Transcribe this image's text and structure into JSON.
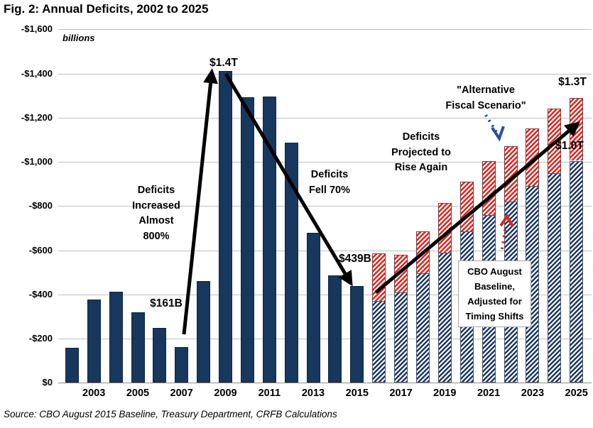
{
  "title": "Fig. 2: Annual Deficits, 2002 to 2025",
  "units_label": "billions",
  "source_line": "Source: CBO August 2015 Baseline, Treasury Department, CRFB Calculations",
  "colors": {
    "solid_bar": "#17375d",
    "baseline_hatch": "#1f3864",
    "afs_hatch": "#e0261f",
    "gridline": "#bfbfbf",
    "arrow_black": "#000000",
    "arrow_blue_dotted": "#2b4ea1",
    "arrow_red_dotted": "#d9261c"
  },
  "y_axis": {
    "ticks": [
      {
        "label": "-$1,600",
        "value": 1600
      },
      {
        "label": "-$1,400",
        "value": 1400
      },
      {
        "label": "-$1,200",
        "value": 1200
      },
      {
        "label": "-$1,000",
        "value": 1000
      },
      {
        "label": "-$800",
        "value": 800
      },
      {
        "label": "-$600",
        "value": 600
      },
      {
        "label": "-$400",
        "value": 400
      },
      {
        "label": "-$200",
        "value": 200
      },
      {
        "label": "$0",
        "value": 0
      }
    ]
  },
  "x_axis": {
    "tick_years": [
      2003,
      2005,
      2007,
      2009,
      2011,
      2013,
      2015,
      2017,
      2019,
      2021,
      2023,
      2025
    ]
  },
  "annotations": {
    "label_161b": "$161B",
    "label_1_4t": "$1.4T",
    "label_439b": "$439B",
    "label_1_3t": "$1.3T",
    "label_1_0t": "$1.0T",
    "note_increase": "Deficits\nIncreased\nAlmost\n800%",
    "note_fell": "Deficits\nFell 70%",
    "note_projected": "Deficits\nProjected to\nRise Again",
    "note_afs": "\"Alternative\nFiscal Scenario\"",
    "note_cbo_box": "CBO August\nBaseline,\nAdjusted for\nTiming Shifts"
  },
  "chart_data": {
    "type": "bar",
    "title": "Fig. 2: Annual Deficits, 2002 to 2025",
    "ylabel": "billions",
    "ylim_display": [
      "$0",
      "-$1,600"
    ],
    "grid": true,
    "legend_position": "none (labeled via callouts)",
    "unit": "billions of dollars (deficits shown as negative axis labels)",
    "x": [
      2002,
      2003,
      2004,
      2005,
      2006,
      2007,
      2008,
      2009,
      2010,
      2011,
      2012,
      2013,
      2014,
      2015,
      2016,
      2017,
      2018,
      2019,
      2020,
      2021,
      2022,
      2023,
      2024,
      2025
    ],
    "series": [
      {
        "name": "Actual deficit (solid navy, 2002-2015)",
        "style": "solid-navy",
        "values": [
          158,
          378,
          413,
          318,
          248,
          161,
          459,
          1413,
          1294,
          1295,
          1087,
          680,
          485,
          439,
          null,
          null,
          null,
          null,
          null,
          null,
          null,
          null,
          null,
          null
        ]
      },
      {
        "name": "CBO August Baseline, Adjusted for Timing Shifts (blue hatched, 2016-2025)",
        "style": "hatched-blue",
        "values": [
          null,
          null,
          null,
          null,
          null,
          null,
          null,
          null,
          null,
          null,
          null,
          null,
          null,
          null,
          370,
          410,
          495,
          590,
          685,
          760,
          820,
          890,
          950,
          1005
        ]
      },
      {
        "name": "\"Alternative Fiscal Scenario\" additional deficit (red hatched, stacked on baseline)",
        "style": "hatched-red",
        "values": [
          null,
          null,
          null,
          null,
          null,
          null,
          null,
          null,
          null,
          null,
          null,
          null,
          null,
          null,
          215,
          170,
          190,
          225,
          225,
          245,
          250,
          260,
          290,
          285
        ]
      }
    ],
    "alternative_scenario_totals": {
      "x": [
        2016,
        2017,
        2018,
        2019,
        2020,
        2021,
        2022,
        2023,
        2024,
        2025
      ],
      "values": [
        585,
        580,
        685,
        815,
        910,
        1005,
        1070,
        1150,
        1240,
        1290
      ]
    },
    "callout_values": {
      "2007": "$161B",
      "2009": "$1.4T",
      "2015": "$439B",
      "2025_baseline": "$1.0T",
      "2025_afs": "$1.3T"
    }
  }
}
